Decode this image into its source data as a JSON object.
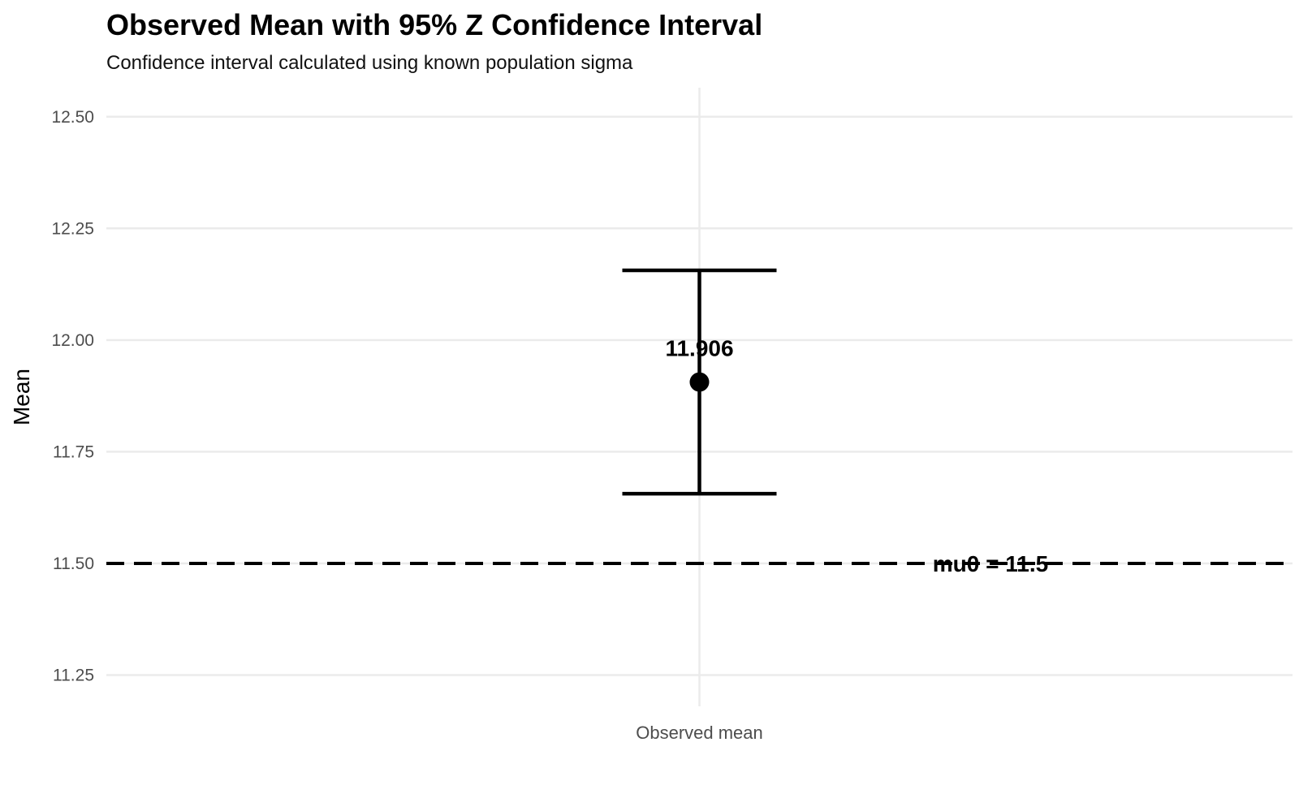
{
  "chart_data": {
    "type": "scatter",
    "title": "Observed Mean with 95% Z Confidence Interval",
    "subtitle": "Confidence interval calculated using known population sigma",
    "xlabel": "",
    "ylabel": "Mean",
    "categories": [
      "Observed mean"
    ],
    "points": [
      {
        "category": "Observed mean",
        "y": 11.906,
        "ci_low": 11.656,
        "ci_high": 12.156,
        "label": "11.906"
      }
    ],
    "reference_line": {
      "y": 11.5,
      "style": "dashed",
      "label": "mu0 = 11.5"
    },
    "yticks": [
      "11.25",
      "11.50",
      "11.75",
      "12.00",
      "12.25",
      "12.50"
    ],
    "ylim": [
      11.18,
      12.565
    ],
    "grid": true,
    "legend": "none"
  }
}
